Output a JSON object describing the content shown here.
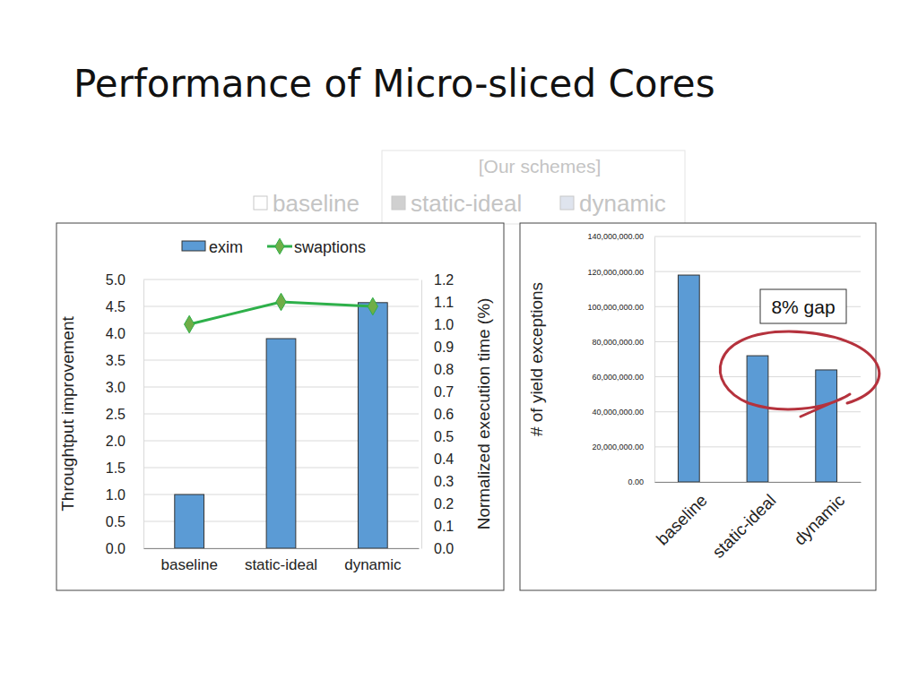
{
  "title": "Performance of Micro-sliced Cores",
  "background_legend": {
    "title": "[Our schemes]",
    "items": [
      "baseline",
      "static-ideal",
      "dynamic"
    ]
  },
  "chart_data": [
    {
      "type": "bar",
      "categories": [
        "baseline",
        "static-ideal",
        "dynamic"
      ],
      "series": [
        {
          "name": "exim",
          "color": "#5b9bd5",
          "values": [
            1.0,
            3.9,
            4.57
          ]
        },
        {
          "name": "swaptions",
          "type": "line",
          "axis": "y2",
          "color": "#2eb04a",
          "marker": "diamond",
          "values": [
            1.0,
            1.1,
            1.08
          ]
        }
      ],
      "ylabel": "Throughtput improvement",
      "y2label": "Normalized execution time (%)",
      "ylim": [
        0,
        5
      ],
      "yticks": [
        {
          "value": 0,
          "label": "0.0"
        },
        0.5,
        {
          "value": 1,
          "label": "1.0"
        },
        1.5,
        {
          "value": 2,
          "label": "2.0"
        },
        2.5,
        {
          "value": 3,
          "label": "3.0"
        },
        3.5,
        {
          "value": 4,
          "label": "4.0"
        },
        4.5,
        {
          "value": 5,
          "label": "5.0"
        }
      ],
      "y2lim": [
        0,
        1.2
      ],
      "y2ticks": [
        {
          "value": 0,
          "label": "0.0"
        },
        0.1,
        0.2,
        0.3,
        0.4,
        0.5,
        0.6,
        0.7,
        0.8,
        0.9,
        {
          "value": 1,
          "label": "1.0"
        },
        1.1,
        1.2
      ],
      "grid": true,
      "legend": "top"
    },
    {
      "type": "bar",
      "categories": [
        "baseline",
        "static-ideal",
        "dynamic"
      ],
      "values": [
        118000000,
        72000000,
        63900000
      ],
      "color": "#5b9bd5",
      "ylabel": "# of yield exceptions",
      "ylim": [
        0,
        140000000
      ],
      "yticks": [
        {
          "value": 0,
          "label": "0.00"
        },
        {
          "value": 20000000,
          "label": "20,000,000.00"
        },
        {
          "value": 40000000,
          "label": "40,000,000.00"
        },
        {
          "value": 60000000,
          "label": "60,000,000.00"
        },
        {
          "value": 80000000,
          "label": "80,000,000.00"
        },
        {
          "value": 100000000,
          "label": "100,000,000.00"
        },
        {
          "value": 120000000,
          "label": "120,000,000.00"
        },
        {
          "value": 140000000,
          "label": "140,000,000.00"
        }
      ],
      "grid": true,
      "annotation": "8% gap"
    }
  ]
}
